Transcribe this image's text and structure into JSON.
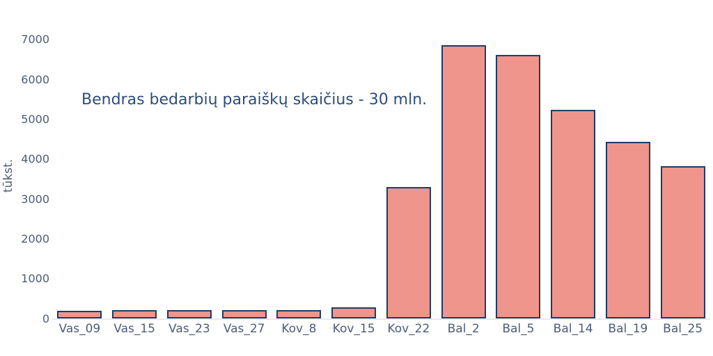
{
  "chart_data": {
    "type": "bar",
    "title": "Bendras bedarbių paraiškų skaičius - 30 mln.",
    "xlabel": "",
    "ylabel": "tūkst.",
    "categories": [
      "Vas_09",
      "Vas_15",
      "Vas_23",
      "Vas_27",
      "Kov_8",
      "Kov_15",
      "Kov_22",
      "Bal_2",
      "Bal_5",
      "Bal_14",
      "Bal_19",
      "Bal_25"
    ],
    "values": [
      205,
      215,
      211,
      217,
      211,
      282,
      3307,
      6867,
      6615,
      5237,
      4442,
      3839
    ],
    "y_ticks": [
      0,
      1000,
      2000,
      3000,
      4000,
      5000,
      6000,
      7000
    ],
    "ylim": [
      0,
      7000
    ],
    "grid": false,
    "legend": "none",
    "colors": {
      "bar_fill": "#ef958b",
      "bar_border": "#1f3b66",
      "title_text": "#2e4d7b",
      "tick_text": "#4d5c77",
      "axis_line": "#e9e9f2",
      "background": "#ffffff"
    }
  }
}
